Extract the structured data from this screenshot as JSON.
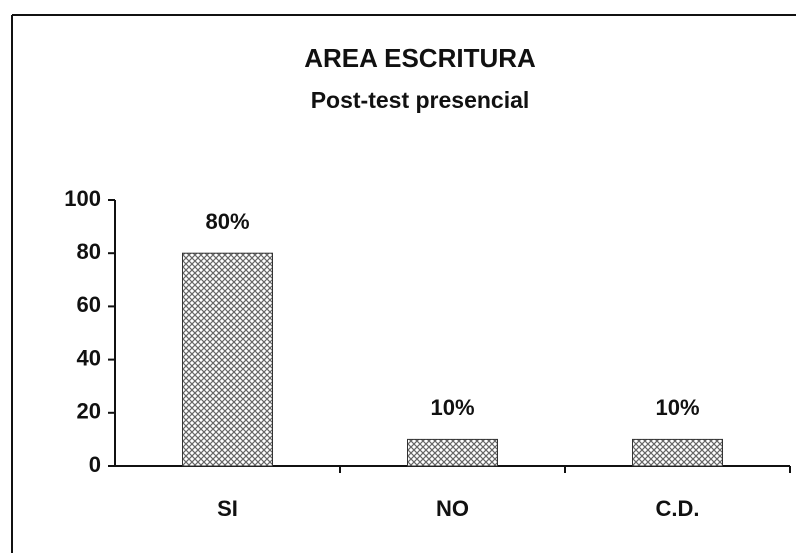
{
  "chart_data": {
    "type": "bar",
    "title": "AREA ESCRITURA",
    "subtitle": "Post-test presencial",
    "categories": [
      "SI",
      "NO",
      "C.D."
    ],
    "values": [
      80,
      10,
      10
    ],
    "value_labels": [
      "80%",
      "10%",
      "10%"
    ],
    "color": "#666666",
    "ylim": [
      0,
      100
    ],
    "yticks": [
      0,
      20,
      40,
      60,
      80,
      100
    ],
    "grid": false
  }
}
